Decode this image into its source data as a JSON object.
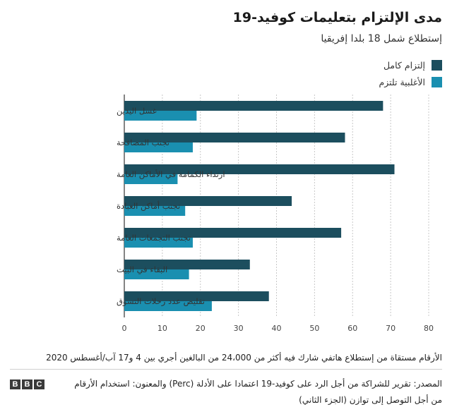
{
  "title": "مدى الإلتزام بتعليمات كوفيد-19",
  "subtitle": "إستطلاع شمل 18 بلدا إفريقيا",
  "colors": {
    "full": "#1c4e5e",
    "mostly": "#1a8fb0",
    "grid": "#c8c8c8",
    "axis": "#333333"
  },
  "chart_data": {
    "type": "bar",
    "orientation": "horizontal",
    "categories": [
      "غسل اليدين",
      "تجنب المصافحة",
      "ارتداء الكمامة في الأماكن العامة",
      "تجنب أماكن العبادة",
      "تجنب التجمعات العامة",
      "البقاء في البيت",
      "تقليص عدد رحلات التسوق"
    ],
    "series": [
      {
        "name": "إلتزام كامل",
        "values": [
          68,
          58,
          71,
          44,
          57,
          33,
          38
        ]
      },
      {
        "name": "الأغلبية تلتزم",
        "values": [
          19,
          18,
          14,
          16,
          18,
          17,
          23
        ]
      }
    ],
    "xlim": [
      0,
      80
    ],
    "xticks": [
      "0",
      "10",
      "20",
      "30",
      "40",
      "50",
      "60",
      "70",
      "80"
    ],
    "grid": "vertical dashed",
    "legend": "top-right"
  },
  "note": "الأرقام مستقاة من إستطلاع هاتفي شارك فيه أكثر من 24،000 من البالغين أجري بين 4 و17 آب/أغسطس 2020",
  "source": "المصدر: تقرير للشراكة من أجل الرد على كوفيد-19 اعتمادا على الأدلة (Perc) والمعنون: استخدام الأرقام من أجل التوصل إلى توازن (الجزء الثاني)",
  "logo": {
    "letters": [
      "B",
      "B",
      "C"
    ]
  }
}
